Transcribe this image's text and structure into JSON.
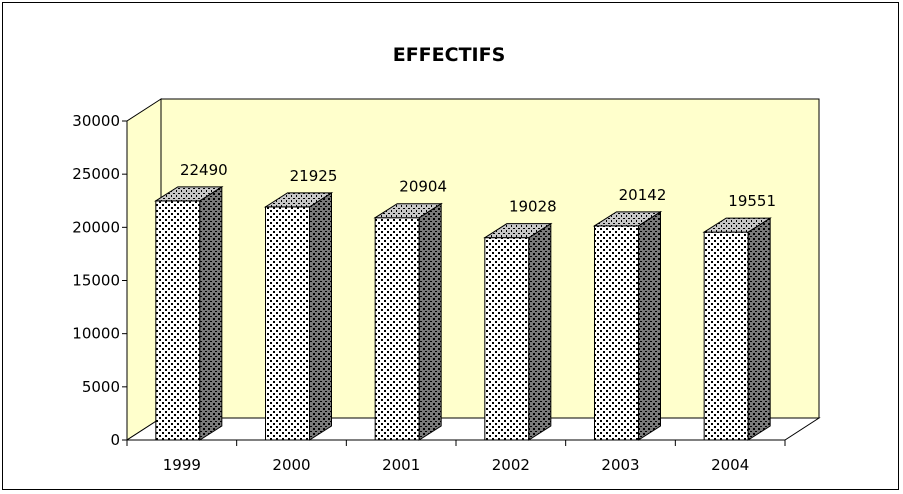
{
  "colors": {
    "wall": "#ffffcc",
    "bar_front_bg": "#ffffff",
    "bar_side_bg": "#707070",
    "bar_top_bg": "#b8b8b8",
    "dots": "#000000"
  },
  "chart_data": {
    "type": "bar",
    "title": "EFFECTIFS",
    "xlabel": "",
    "ylabel": "",
    "categories": [
      "1999",
      "2000",
      "2001",
      "2002",
      "2003",
      "2004"
    ],
    "values": [
      22490,
      21925,
      20904,
      19028,
      20142,
      19551
    ],
    "data_labels": [
      "22490",
      "21925",
      "20904",
      "19028",
      "20142",
      "19551"
    ],
    "ylim": [
      0,
      30000
    ],
    "yticks": [
      "0",
      "5000",
      "10000",
      "15000",
      "20000",
      "25000",
      "30000"
    ],
    "grid": false,
    "legend": "none",
    "style": "3d"
  }
}
